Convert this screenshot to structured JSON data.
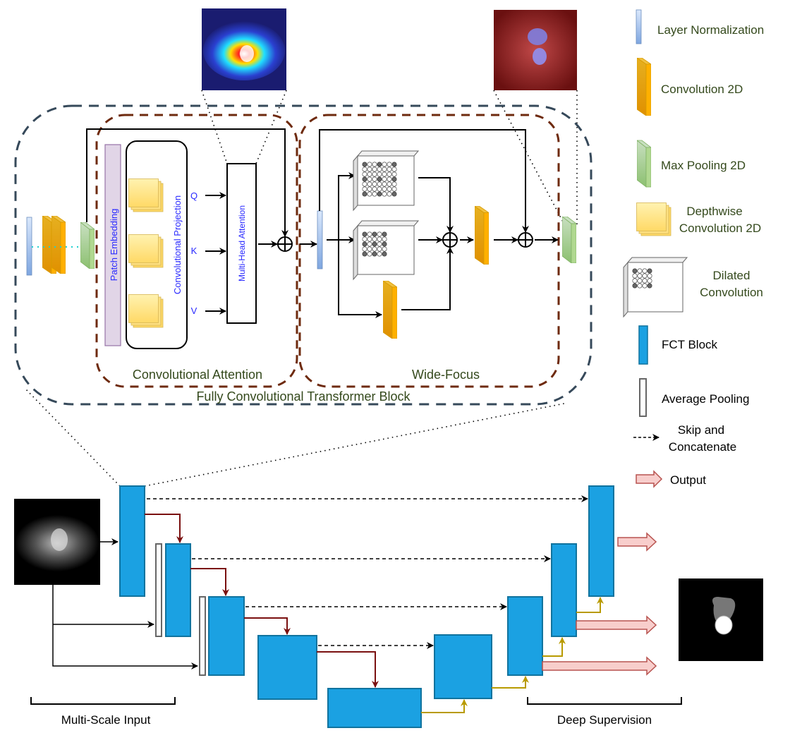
{
  "fct_block": {
    "title": "Fully Convolutional Transformer Block",
    "conv_attention": {
      "title": "Convolutional Attention",
      "patch_embedding": "Patch Embedding",
      "conv_projection": "Convolutional Projection",
      "q": "Q",
      "k": "K",
      "v": "V",
      "mha": "Multi-Head Attention"
    },
    "wide_focus": {
      "title": "Wide-Focus"
    }
  },
  "unet": {
    "multi_scale_input": "Multi-Scale Input",
    "deep_supervision": "Deep Supervision"
  },
  "legend": {
    "layer_norm": "Layer Normalization",
    "conv2d": "Convolution 2D",
    "maxpool": "Max Pooling 2D",
    "depthwise_1": "Depthwise",
    "depthwise_2": "Convolution 2D",
    "dilated_1": "Dilated",
    "dilated_2": "Convolution",
    "fct": "FCT Block",
    "avgpool": "Average Pooling",
    "skip_1": "Skip and",
    "skip_2": "Concatenate",
    "output": "Output"
  },
  "colors": {
    "fct_block": "#1ba1e2",
    "down_arrow": "#7a1010",
    "up_arrow": "#b89a00",
    "attention_border": "#6e2a0e",
    "outer_border": "#36495a",
    "label_green": "#34491c",
    "blue_text": "#2a2aff"
  }
}
